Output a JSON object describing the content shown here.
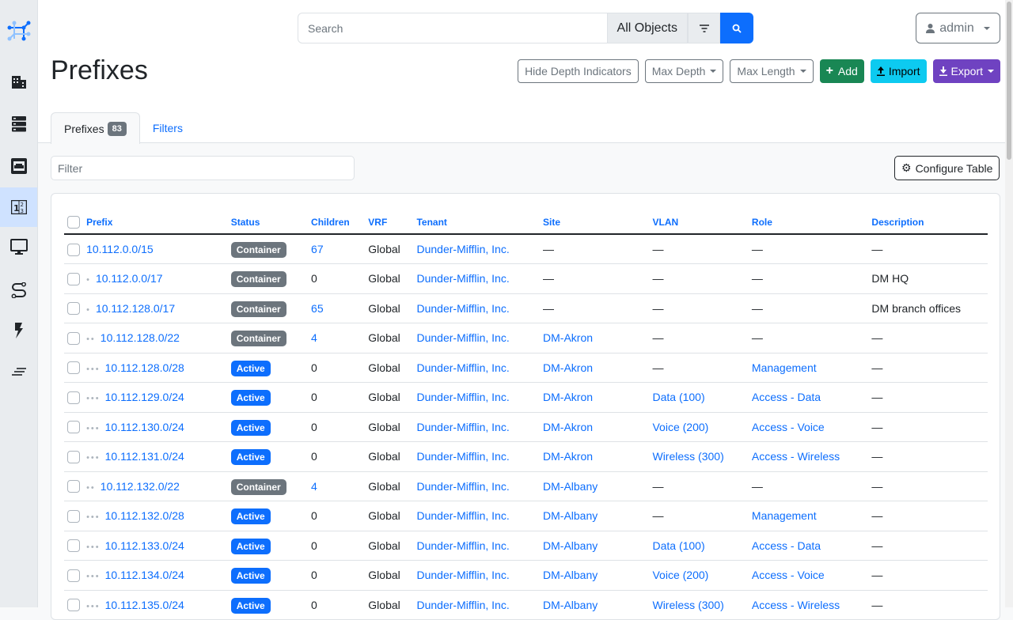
{
  "sidebar": {
    "items": [
      {
        "icon": "netbox-logo-icon"
      },
      {
        "icon": "organization-icon"
      },
      {
        "icon": "racks-icon"
      },
      {
        "icon": "devices-icon"
      },
      {
        "icon": "ipam-icon",
        "active": true
      },
      {
        "icon": "virtualization-icon"
      },
      {
        "icon": "circuits-icon"
      },
      {
        "icon": "power-icon"
      },
      {
        "icon": "other-icon"
      }
    ]
  },
  "header": {
    "search_placeholder": "Search",
    "object_type": "All Objects",
    "user": "admin"
  },
  "page": {
    "title": "Prefixes"
  },
  "actions": {
    "hide_depth": "Hide Depth Indicators",
    "max_depth": "Max Depth",
    "max_length": "Max Length",
    "add": "Add",
    "import": "Import",
    "export": "Export"
  },
  "colors": {
    "primary": "#0d6efd",
    "add": "#198754",
    "import": "#0dcaf0",
    "export": "#6f42c1",
    "container": "#6c757d",
    "active": "#0d6efd"
  },
  "tabs": [
    {
      "label": "Prefixes",
      "count": "83"
    },
    {
      "label": "Filters"
    }
  ],
  "filter_placeholder": "Filter",
  "configure_table": "Configure Table",
  "table": {
    "columns": [
      "Prefix",
      "Status",
      "Children",
      "VRF",
      "Tenant",
      "Site",
      "VLAN",
      "Role",
      "Description"
    ],
    "rows": [
      {
        "depth": 0,
        "prefix": "10.112.0.0/15",
        "status": "Container",
        "children": "67",
        "vrf": "Global",
        "tenant": "Dunder-Mifflin, Inc.",
        "site": "—",
        "vlan": "—",
        "role": "—",
        "description": "—"
      },
      {
        "depth": 1,
        "prefix": "10.112.0.0/17",
        "status": "Container",
        "children": "0",
        "vrf": "Global",
        "tenant": "Dunder-Mifflin, Inc.",
        "site": "—",
        "vlan": "—",
        "role": "—",
        "description": "DM HQ"
      },
      {
        "depth": 1,
        "prefix": "10.112.128.0/17",
        "status": "Container",
        "children": "65",
        "vrf": "Global",
        "tenant": "Dunder-Mifflin, Inc.",
        "site": "—",
        "vlan": "—",
        "role": "—",
        "description": "DM branch offices"
      },
      {
        "depth": 2,
        "prefix": "10.112.128.0/22",
        "status": "Container",
        "children": "4",
        "vrf": "Global",
        "tenant": "Dunder-Mifflin, Inc.",
        "site": "DM-Akron",
        "vlan": "—",
        "role": "—",
        "description": "—"
      },
      {
        "depth": 3,
        "prefix": "10.112.128.0/28",
        "status": "Active",
        "children": "0",
        "vrf": "Global",
        "tenant": "Dunder-Mifflin, Inc.",
        "site": "DM-Akron",
        "vlan": "—",
        "role": "Management",
        "description": "—"
      },
      {
        "depth": 3,
        "prefix": "10.112.129.0/24",
        "status": "Active",
        "children": "0",
        "vrf": "Global",
        "tenant": "Dunder-Mifflin, Inc.",
        "site": "DM-Akron",
        "vlan": "Data (100)",
        "role": "Access - Data",
        "description": "—"
      },
      {
        "depth": 3,
        "prefix": "10.112.130.0/24",
        "status": "Active",
        "children": "0",
        "vrf": "Global",
        "tenant": "Dunder-Mifflin, Inc.",
        "site": "DM-Akron",
        "vlan": "Voice (200)",
        "role": "Access - Voice",
        "description": "—"
      },
      {
        "depth": 3,
        "prefix": "10.112.131.0/24",
        "status": "Active",
        "children": "0",
        "vrf": "Global",
        "tenant": "Dunder-Mifflin, Inc.",
        "site": "DM-Akron",
        "vlan": "Wireless (300)",
        "role": "Access - Wireless",
        "description": "—"
      },
      {
        "depth": 2,
        "prefix": "10.112.132.0/22",
        "status": "Container",
        "children": "4",
        "vrf": "Global",
        "tenant": "Dunder-Mifflin, Inc.",
        "site": "DM-Albany",
        "vlan": "—",
        "role": "—",
        "description": "—"
      },
      {
        "depth": 3,
        "prefix": "10.112.132.0/28",
        "status": "Active",
        "children": "0",
        "vrf": "Global",
        "tenant": "Dunder-Mifflin, Inc.",
        "site": "DM-Albany",
        "vlan": "—",
        "role": "Management",
        "description": "—"
      },
      {
        "depth": 3,
        "prefix": "10.112.133.0/24",
        "status": "Active",
        "children": "0",
        "vrf": "Global",
        "tenant": "Dunder-Mifflin, Inc.",
        "site": "DM-Albany",
        "vlan": "Data (100)",
        "role": "Access - Data",
        "description": "—"
      },
      {
        "depth": 3,
        "prefix": "10.112.134.0/24",
        "status": "Active",
        "children": "0",
        "vrf": "Global",
        "tenant": "Dunder-Mifflin, Inc.",
        "site": "DM-Albany",
        "vlan": "Voice (200)",
        "role": "Access - Voice",
        "description": "—"
      },
      {
        "depth": 3,
        "prefix": "10.112.135.0/24",
        "status": "Active",
        "children": "0",
        "vrf": "Global",
        "tenant": "Dunder-Mifflin, Inc.",
        "site": "DM-Albany",
        "vlan": "Wireless (300)",
        "role": "Access - Wireless",
        "description": "—"
      }
    ]
  }
}
